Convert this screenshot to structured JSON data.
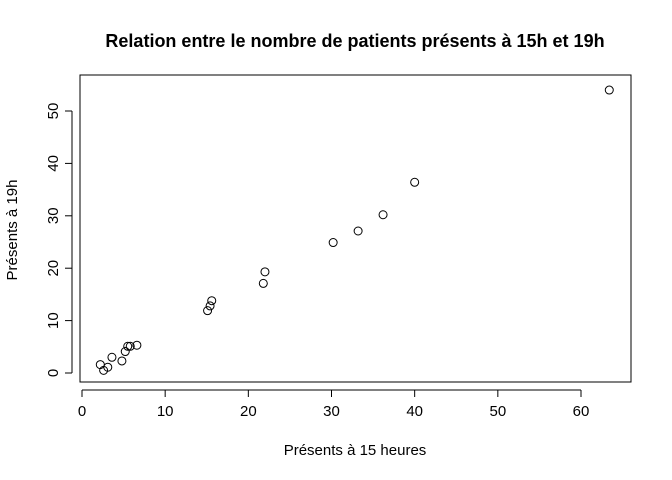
{
  "chart_data": {
    "type": "scatter",
    "title": "Relation entre le nombre de patients présents à 15h et 19h",
    "xlabel": "Présents à 15 heures",
    "ylabel": "Présents à 19h",
    "xlim": [
      0,
      65
    ],
    "ylim": [
      -1,
      56
    ],
    "xticks": [
      0,
      10,
      20,
      30,
      40,
      50,
      60
    ],
    "yticks": [
      0,
      10,
      20,
      30,
      40,
      50
    ],
    "grid": false,
    "legend": "none",
    "points": [
      {
        "x": 2.2,
        "y": 1.6
      },
      {
        "x": 2.6,
        "y": 0.5
      },
      {
        "x": 3.1,
        "y": 1.1
      },
      {
        "x": 3.6,
        "y": 3.0
      },
      {
        "x": 4.8,
        "y": 2.3
      },
      {
        "x": 5.2,
        "y": 4.1
      },
      {
        "x": 5.5,
        "y": 5.1
      },
      {
        "x": 5.8,
        "y": 5.1
      },
      {
        "x": 6.6,
        "y": 5.3
      },
      {
        "x": 15.1,
        "y": 11.9
      },
      {
        "x": 15.4,
        "y": 12.8
      },
      {
        "x": 15.6,
        "y": 13.8
      },
      {
        "x": 21.8,
        "y": 17.1
      },
      {
        "x": 22.0,
        "y": 19.3
      },
      {
        "x": 30.2,
        "y": 24.9
      },
      {
        "x": 33.2,
        "y": 27.1
      },
      {
        "x": 36.2,
        "y": 30.2
      },
      {
        "x": 40.0,
        "y": 36.4
      },
      {
        "x": 63.4,
        "y": 54.0
      }
    ]
  }
}
